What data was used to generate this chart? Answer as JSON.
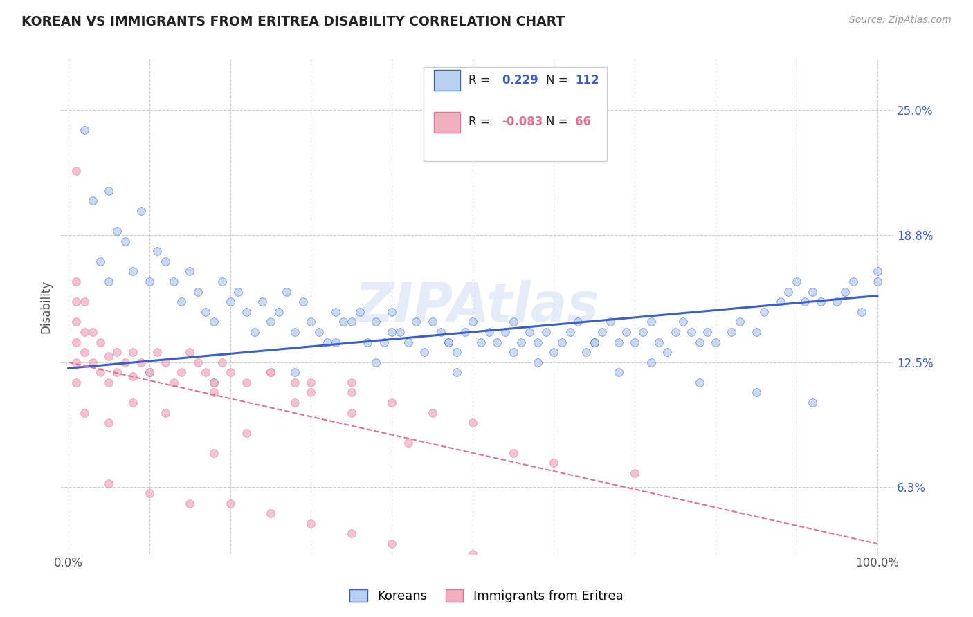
{
  "title": "KOREAN VS IMMIGRANTS FROM ERITREA DISABILITY CORRELATION CHART",
  "source": "Source: ZipAtlas.com",
  "ylabel": "Disability",
  "watermark": "ZIPAtlas",
  "xlim": [
    -1.0,
    102.0
  ],
  "ylim": [
    3.0,
    27.5
  ],
  "yticks": [
    6.3,
    12.5,
    18.8,
    25.0
  ],
  "ytick_labels": [
    "6.3%",
    "12.5%",
    "18.8%",
    "25.0%"
  ],
  "xtick_labels": [
    "0.0%",
    "100.0%"
  ],
  "background_color": "#ffffff",
  "grid_color": "#cccccc",
  "title_color": "#222222",
  "axis_color": "#555555",
  "blue_color": "#3a5fc8",
  "pink_color": "#e07090",
  "blue_scatter_color": "#b8d0f0",
  "pink_scatter_color": "#f0b0c0",
  "legend_blue_color": "#3a5fc8",
  "legend_pink_color": "#e07090",
  "R_blue": "0.229",
  "N_blue": "112",
  "R_pink": "-0.083",
  "N_pink": "66",
  "koreans_x": [
    2,
    3,
    4,
    5,
    5,
    6,
    7,
    8,
    9,
    10,
    11,
    12,
    13,
    14,
    15,
    16,
    17,
    18,
    19,
    20,
    21,
    22,
    23,
    24,
    25,
    26,
    27,
    28,
    29,
    30,
    31,
    32,
    33,
    34,
    35,
    36,
    37,
    38,
    39,
    40,
    41,
    42,
    43,
    44,
    45,
    46,
    47,
    48,
    49,
    50,
    51,
    52,
    53,
    54,
    55,
    56,
    57,
    58,
    59,
    60,
    61,
    62,
    63,
    64,
    65,
    66,
    67,
    68,
    69,
    70,
    71,
    72,
    73,
    74,
    75,
    76,
    77,
    78,
    79,
    80,
    82,
    83,
    85,
    86,
    88,
    89,
    90,
    91,
    92,
    93,
    95,
    96,
    97,
    98,
    100,
    100,
    33,
    40,
    47,
    55,
    65,
    72,
    78,
    85,
    92,
    10,
    18,
    28,
    38,
    48,
    58,
    68
  ],
  "koreans_y": [
    24.0,
    20.5,
    17.5,
    21.0,
    16.5,
    19.0,
    18.5,
    17.0,
    20.0,
    16.5,
    18.0,
    17.5,
    16.5,
    15.5,
    17.0,
    16.0,
    15.0,
    14.5,
    16.5,
    15.5,
    16.0,
    15.0,
    14.0,
    15.5,
    14.5,
    15.0,
    16.0,
    14.0,
    15.5,
    14.5,
    14.0,
    13.5,
    15.0,
    14.5,
    14.5,
    15.0,
    13.5,
    14.5,
    13.5,
    15.0,
    14.0,
    13.5,
    14.5,
    13.0,
    14.5,
    14.0,
    13.5,
    13.0,
    14.0,
    14.5,
    13.5,
    14.0,
    13.5,
    14.0,
    13.0,
    13.5,
    14.0,
    13.5,
    14.0,
    13.0,
    13.5,
    14.0,
    14.5,
    13.0,
    13.5,
    14.0,
    14.5,
    13.5,
    14.0,
    13.5,
    14.0,
    14.5,
    13.5,
    13.0,
    14.0,
    14.5,
    14.0,
    13.5,
    14.0,
    13.5,
    14.0,
    14.5,
    14.0,
    15.0,
    15.5,
    16.0,
    16.5,
    15.5,
    16.0,
    15.5,
    15.5,
    16.0,
    16.5,
    15.0,
    16.5,
    17.0,
    13.5,
    14.0,
    13.5,
    14.5,
    13.5,
    12.5,
    11.5,
    11.0,
    10.5,
    12.0,
    11.5,
    12.0,
    12.5,
    12.0,
    12.5,
    12.0
  ],
  "eritrea_x": [
    1,
    1,
    1,
    1,
    1,
    1,
    1,
    2,
    2,
    2,
    2,
    3,
    3,
    4,
    4,
    5,
    5,
    6,
    6,
    7,
    8,
    8,
    9,
    10,
    11,
    12,
    13,
    14,
    15,
    16,
    17,
    18,
    19,
    20,
    22,
    25,
    28,
    30,
    35,
    40,
    45,
    50,
    35,
    5,
    8,
    12,
    18,
    25,
    30,
    18,
    22,
    28,
    35,
    42,
    5,
    10,
    15,
    20,
    25,
    30,
    35,
    40,
    50,
    55,
    60,
    70
  ],
  "eritrea_y": [
    11.5,
    12.5,
    13.5,
    14.5,
    15.5,
    16.5,
    22.0,
    13.0,
    14.0,
    15.5,
    10.0,
    12.5,
    14.0,
    12.0,
    13.5,
    12.8,
    11.5,
    13.0,
    12.0,
    12.5,
    11.8,
    13.0,
    12.5,
    12.0,
    13.0,
    12.5,
    11.5,
    12.0,
    13.0,
    12.5,
    12.0,
    11.5,
    12.5,
    12.0,
    11.5,
    12.0,
    11.5,
    11.0,
    11.0,
    10.5,
    10.0,
    9.5,
    11.5,
    9.5,
    10.5,
    10.0,
    11.0,
    12.0,
    11.5,
    8.0,
    9.0,
    10.5,
    10.0,
    8.5,
    6.5,
    6.0,
    5.5,
    5.5,
    5.0,
    4.5,
    4.0,
    3.5,
    3.0,
    8.0,
    7.5,
    7.0
  ],
  "blue_trend_x": [
    0,
    100
  ],
  "blue_trend_y": [
    12.2,
    15.8
  ],
  "pink_trend_x": [
    0,
    100
  ],
  "pink_trend_y": [
    12.5,
    3.5
  ]
}
